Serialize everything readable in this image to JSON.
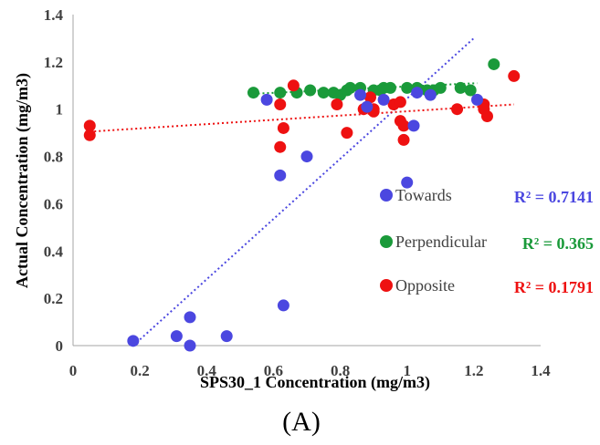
{
  "chart_data": {
    "type": "scatter",
    "xlabel": "SPS30_1 Concentration (mg/m3)",
    "ylabel": "Actual Concentration (mg/m3)",
    "xlim": [
      0,
      1.4
    ],
    "ylim": [
      0,
      1.4
    ],
    "x_ticks": [
      "0",
      "0.2",
      "0.4",
      "0.6",
      "0.8",
      "1",
      "1.2",
      "1.4"
    ],
    "y_ticks": [
      "0",
      "0.2",
      "0.4",
      "0.6",
      "0.8",
      "1",
      "1.2",
      "1.4"
    ],
    "grid": false,
    "legend_position": "right",
    "caption": "(A)",
    "series": [
      {
        "name": "Towards",
        "color": "#4B47E0",
        "r2": "R² = 0.7141",
        "trendline": {
          "x1": 0.18,
          "y1": 0.0,
          "x2": 1.2,
          "y2": 1.3
        },
        "x": [
          0.18,
          0.31,
          0.35,
          0.35,
          0.46,
          0.62,
          0.63,
          0.58,
          0.7,
          0.86,
          0.88,
          1.0,
          1.02,
          0.93,
          1.03,
          1.07,
          1.21
        ],
        "y": [
          0.02,
          0.04,
          0.0,
          0.12,
          0.04,
          0.72,
          0.17,
          1.04,
          0.8,
          1.06,
          1.01,
          0.69,
          0.93,
          1.04,
          1.07,
          1.06,
          1.04
        ]
      },
      {
        "name": "Perpendicular",
        "color": "#1A9A3A",
        "r2": "R² = 0.365",
        "trendline": {
          "x1": 0.54,
          "y1": 1.065,
          "x2": 1.21,
          "y2": 1.11
        },
        "x": [
          0.54,
          0.62,
          0.67,
          0.71,
          0.75,
          0.78,
          0.8,
          0.82,
          0.83,
          0.86,
          0.9,
          0.92,
          0.93,
          0.95,
          1.0,
          1.03,
          1.06,
          1.08,
          1.1,
          1.16,
          1.19,
          1.26
        ],
        "y": [
          1.07,
          1.07,
          1.07,
          1.08,
          1.07,
          1.07,
          1.06,
          1.08,
          1.09,
          1.09,
          1.08,
          1.08,
          1.09,
          1.09,
          1.09,
          1.09,
          1.08,
          1.08,
          1.09,
          1.09,
          1.08,
          1.19
        ]
      },
      {
        "name": "Opposite",
        "color": "#EE1111",
        "r2": "R² = 0.1791",
        "trendline": {
          "x1": 0.05,
          "y1": 0.905,
          "x2": 1.32,
          "y2": 1.02
        },
        "x": [
          0.05,
          0.05,
          0.62,
          0.62,
          0.63,
          0.66,
          0.79,
          0.82,
          0.87,
          0.89,
          0.9,
          0.9,
          0.96,
          0.98,
          0.98,
          0.99,
          0.99,
          1.15,
          1.23,
          1.23,
          1.24,
          1.32
        ],
        "y": [
          0.93,
          0.89,
          1.02,
          0.84,
          0.92,
          1.1,
          1.02,
          0.9,
          1.0,
          1.05,
          1.0,
          0.99,
          1.02,
          1.03,
          0.95,
          0.93,
          0.87,
          1.0,
          1.02,
          1.0,
          0.97,
          1.14
        ]
      }
    ]
  }
}
